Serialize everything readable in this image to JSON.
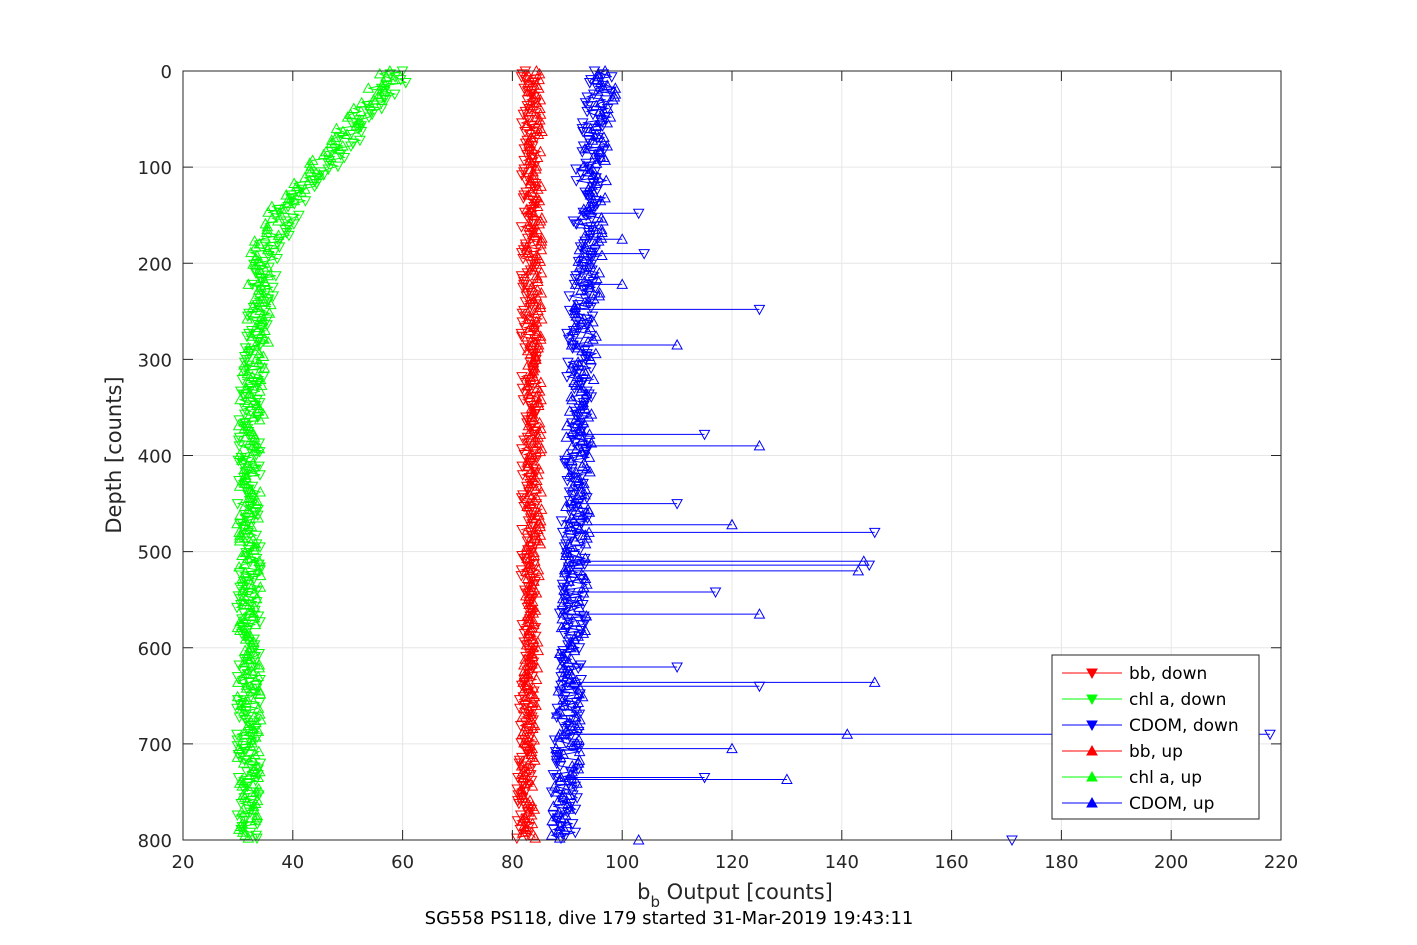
{
  "chart_data": {
    "type": "scatter",
    "xlabel": "b",
    "xlabel_subscript": "b",
    "xlabel_rest": " Output [counts]",
    "ylabel": "Depth [counts]",
    "caption": "SG558 PS118, dive 179 started 31-Mar-2019 19:43:11",
    "xlim": [
      20,
      220
    ],
    "ylim": [
      0,
      800
    ],
    "y_reversed": true,
    "xticks": [
      20,
      40,
      60,
      80,
      100,
      120,
      140,
      160,
      180,
      200,
      220
    ],
    "yticks": [
      0,
      100,
      200,
      300,
      400,
      500,
      600,
      700,
      800
    ],
    "grid": true,
    "legend_position": "bottom-right",
    "series": [
      {
        "name": "bb, down",
        "color": "#ff0000",
        "marker": "triangle-down",
        "profile": [
          [
            0,
            83
          ],
          [
            100,
            83
          ],
          [
            200,
            83
          ],
          [
            300,
            83
          ],
          [
            400,
            83
          ],
          [
            500,
            83
          ],
          [
            600,
            83
          ],
          [
            700,
            82.5
          ],
          [
            800,
            82
          ]
        ]
      },
      {
        "name": "chl a, down",
        "color": "#00ff00",
        "marker": "triangle-down",
        "profile": [
          [
            0,
            60
          ],
          [
            20,
            58
          ],
          [
            50,
            53
          ],
          [
            80,
            49
          ],
          [
            100,
            46
          ],
          [
            120,
            43
          ],
          [
            140,
            40
          ],
          [
            160,
            38
          ],
          [
            200,
            35
          ],
          [
            250,
            34
          ],
          [
            300,
            33
          ],
          [
            400,
            32
          ],
          [
            500,
            32
          ],
          [
            600,
            32
          ],
          [
            700,
            32
          ],
          [
            800,
            32
          ]
        ]
      },
      {
        "name": "CDOM, down",
        "color": "#0000ff",
        "marker": "triangle-down",
        "profile": [
          [
            0,
            96
          ],
          [
            50,
            95
          ],
          [
            100,
            94
          ],
          [
            200,
            93
          ],
          [
            300,
            92
          ],
          [
            400,
            92
          ],
          [
            500,
            91
          ],
          [
            600,
            91
          ],
          [
            700,
            90
          ],
          [
            800,
            89
          ]
        ]
      },
      {
        "name": "bb, up",
        "color": "#ff0000",
        "marker": "triangle-up",
        "profile": [
          [
            0,
            84
          ],
          [
            100,
            84
          ],
          [
            200,
            84
          ],
          [
            300,
            84
          ],
          [
            400,
            84
          ],
          [
            500,
            84
          ],
          [
            600,
            83.5
          ],
          [
            700,
            83
          ],
          [
            800,
            83
          ]
        ]
      },
      {
        "name": "chl a, up",
        "color": "#00ff00",
        "marker": "triangle-up",
        "profile": [
          [
            0,
            57
          ],
          [
            20,
            55
          ],
          [
            50,
            51
          ],
          [
            80,
            47
          ],
          [
            100,
            44
          ],
          [
            120,
            41
          ],
          [
            140,
            38
          ],
          [
            160,
            36
          ],
          [
            200,
            34
          ],
          [
            250,
            34
          ],
          [
            300,
            33
          ],
          [
            400,
            32
          ],
          [
            500,
            32
          ],
          [
            600,
            32
          ],
          [
            700,
            32
          ],
          [
            800,
            32
          ]
        ]
      },
      {
        "name": "CDOM, up",
        "color": "#0000ff",
        "marker": "triangle-up",
        "profile": [
          [
            0,
            97
          ],
          [
            50,
            96
          ],
          [
            100,
            95
          ],
          [
            200,
            94
          ],
          [
            300,
            93
          ],
          [
            400,
            92
          ],
          [
            500,
            92
          ],
          [
            600,
            91
          ],
          [
            700,
            90
          ],
          [
            800,
            89
          ]
        ]
      }
    ],
    "cdom_spikes": [
      [
        148,
        103
      ],
      [
        175,
        100
      ],
      [
        190,
        104
      ],
      [
        222,
        100
      ],
      [
        248,
        125
      ],
      [
        285,
        110
      ],
      [
        378,
        115
      ],
      [
        390,
        125
      ],
      [
        450,
        110
      ],
      [
        472,
        120
      ],
      [
        480,
        146
      ],
      [
        510,
        144
      ],
      [
        514,
        145
      ],
      [
        520,
        143
      ],
      [
        542,
        117
      ],
      [
        565,
        125
      ],
      [
        620,
        110
      ],
      [
        636,
        146
      ],
      [
        640,
        125
      ],
      [
        690,
        141
      ],
      [
        690,
        218
      ],
      [
        705,
        120
      ],
      [
        735,
        115
      ],
      [
        737,
        130
      ],
      [
        800,
        171
      ],
      [
        800,
        103
      ]
    ]
  }
}
